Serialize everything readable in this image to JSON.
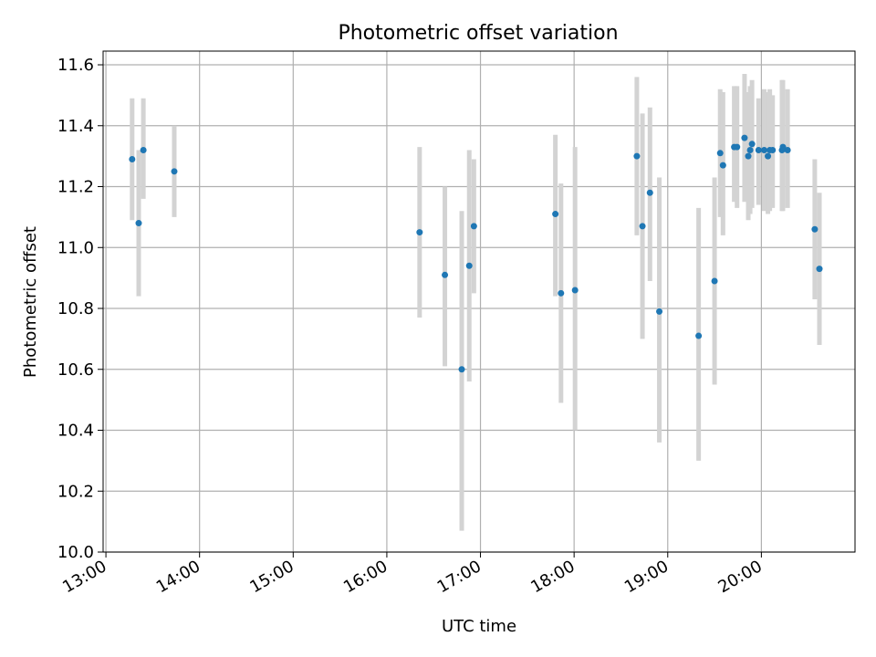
{
  "colors": {
    "point": "#1f77b4",
    "errorbar": "#d3d3d3",
    "grid": "#b0b0b0",
    "axis": "#000000"
  },
  "chart_data": {
    "type": "scatter",
    "title": "Photometric offset variation",
    "xlabel": "UTC time",
    "ylabel": "Photometric offset",
    "grid": true,
    "x_unit": "hours UTC",
    "xlim": [
      12.97,
      21.0
    ],
    "ylim": [
      10.0,
      11.645
    ],
    "xticks": [
      {
        "value": 13,
        "label": "13:00"
      },
      {
        "value": 14,
        "label": "14:00"
      },
      {
        "value": 15,
        "label": "15:00"
      },
      {
        "value": 16,
        "label": "16:00"
      },
      {
        "value": 17,
        "label": "17:00"
      },
      {
        "value": 18,
        "label": "18:00"
      },
      {
        "value": 19,
        "label": "19:00"
      },
      {
        "value": 20,
        "label": "20:00"
      }
    ],
    "yticks": [
      {
        "value": 10.0,
        "label": "10.0"
      },
      {
        "value": 10.2,
        "label": "10.2"
      },
      {
        "value": 10.4,
        "label": "10.4"
      },
      {
        "value": 10.6,
        "label": "10.6"
      },
      {
        "value": 10.8,
        "label": "10.8"
      },
      {
        "value": 11.0,
        "label": "11.0"
      },
      {
        "value": 11.2,
        "label": "11.2"
      },
      {
        "value": 11.4,
        "label": "11.4"
      },
      {
        "value": 11.6,
        "label": "11.6"
      }
    ],
    "series": [
      {
        "name": "offset",
        "points": [
          {
            "x": 13.28,
            "y": 11.29,
            "lo": 11.09,
            "hi": 11.49
          },
          {
            "x": 13.35,
            "y": 11.08,
            "lo": 10.84,
            "hi": 11.32
          },
          {
            "x": 13.4,
            "y": 11.32,
            "lo": 11.16,
            "hi": 11.49
          },
          {
            "x": 13.73,
            "y": 11.25,
            "lo": 11.1,
            "hi": 11.4
          },
          {
            "x": 16.35,
            "y": 11.05,
            "lo": 10.77,
            "hi": 11.33
          },
          {
            "x": 16.62,
            "y": 10.91,
            "lo": 10.61,
            "hi": 11.2
          },
          {
            "x": 16.8,
            "y": 10.6,
            "lo": 10.07,
            "hi": 11.12
          },
          {
            "x": 16.88,
            "y": 10.94,
            "lo": 10.56,
            "hi": 11.32
          },
          {
            "x": 16.93,
            "y": 11.07,
            "lo": 10.85,
            "hi": 11.29
          },
          {
            "x": 17.8,
            "y": 11.11,
            "lo": 10.84,
            "hi": 11.37
          },
          {
            "x": 17.86,
            "y": 10.85,
            "lo": 10.49,
            "hi": 11.21
          },
          {
            "x": 18.01,
            "y": 10.86,
            "lo": 10.4,
            "hi": 11.33
          },
          {
            "x": 18.67,
            "y": 11.3,
            "lo": 11.04,
            "hi": 11.56
          },
          {
            "x": 18.73,
            "y": 11.07,
            "lo": 10.7,
            "hi": 11.44
          },
          {
            "x": 18.81,
            "y": 11.18,
            "lo": 10.89,
            "hi": 11.46
          },
          {
            "x": 18.91,
            "y": 10.79,
            "lo": 10.36,
            "hi": 11.23
          },
          {
            "x": 19.33,
            "y": 10.71,
            "lo": 10.3,
            "hi": 11.13
          },
          {
            "x": 19.5,
            "y": 10.89,
            "lo": 10.55,
            "hi": 11.23
          },
          {
            "x": 19.56,
            "y": 11.31,
            "lo": 11.1,
            "hi": 11.52
          },
          {
            "x": 19.59,
            "y": 11.27,
            "lo": 11.04,
            "hi": 11.51
          },
          {
            "x": 19.71,
            "y": 11.33,
            "lo": 11.15,
            "hi": 11.53
          },
          {
            "x": 19.74,
            "y": 11.33,
            "lo": 11.13,
            "hi": 11.53
          },
          {
            "x": 19.82,
            "y": 11.36,
            "lo": 11.15,
            "hi": 11.57
          },
          {
            "x": 19.86,
            "y": 11.3,
            "lo": 11.09,
            "hi": 11.51
          },
          {
            "x": 19.88,
            "y": 11.32,
            "lo": 11.11,
            "hi": 11.53
          },
          {
            "x": 19.9,
            "y": 11.34,
            "lo": 11.13,
            "hi": 11.55
          },
          {
            "x": 19.97,
            "y": 11.32,
            "lo": 11.14,
            "hi": 11.49
          },
          {
            "x": 20.03,
            "y": 11.32,
            "lo": 11.12,
            "hi": 11.52
          },
          {
            "x": 20.07,
            "y": 11.3,
            "lo": 11.11,
            "hi": 11.51
          },
          {
            "x": 20.09,
            "y": 11.32,
            "lo": 11.12,
            "hi": 11.52
          },
          {
            "x": 20.12,
            "y": 11.32,
            "lo": 11.13,
            "hi": 11.5
          },
          {
            "x": 20.22,
            "y": 11.32,
            "lo": 11.12,
            "hi": 11.55
          },
          {
            "x": 20.23,
            "y": 11.33,
            "lo": 11.12,
            "hi": 11.55
          },
          {
            "x": 20.28,
            "y": 11.32,
            "lo": 11.13,
            "hi": 11.52
          },
          {
            "x": 20.57,
            "y": 11.06,
            "lo": 10.83,
            "hi": 11.29
          },
          {
            "x": 20.62,
            "y": 10.93,
            "lo": 10.68,
            "hi": 11.18
          }
        ]
      }
    ]
  }
}
